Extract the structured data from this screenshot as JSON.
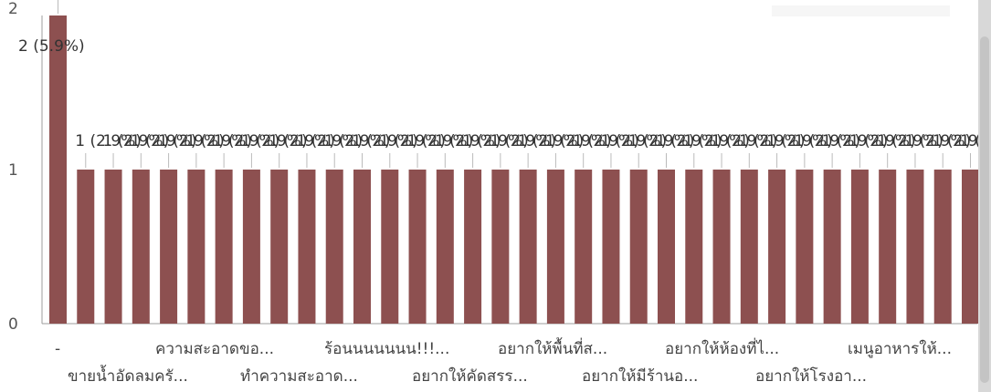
{
  "chart_data": {
    "type": "bar",
    "y_ticks": [
      "0",
      "1",
      "2"
    ],
    "ylim": [
      0,
      2
    ],
    "bar_color": "#8d5050",
    "values": [
      2,
      1,
      1,
      1,
      1,
      1,
      1,
      1,
      1,
      1,
      1,
      1,
      1,
      1,
      1,
      1,
      1,
      1,
      1,
      1,
      1,
      1,
      1,
      1,
      1,
      1,
      1,
      1,
      1,
      1,
      1,
      1,
      1,
      1
    ],
    "data_labels": [
      "2 (5.9%)",
      "1 (2.9%)",
      "1 (2.9%)",
      "1 (2.9%)",
      "1 (2.9%)",
      "1 (2.9%)",
      "1 (2.9%)",
      "1 (2.9%)",
      "1 (2.9%)",
      "1 (2.9%)",
      "1 (2.9%)",
      "1 (2.9%)",
      "1 (2.9%)",
      "1 (2.9%)",
      "1 (2.9%)",
      "1 (2.9%)",
      "1 (2.9%)",
      "1 (2.9%)",
      "1 (2.9%)",
      "1 (2.9%)",
      "1 (2.9%)",
      "1 (2.9%)",
      "1 (2.9%)",
      "1 (2.9%)",
      "1 (2.9%)",
      "1 (2.9%)",
      "1 (2.9%)",
      "1 (2.9%)",
      "1 (2.9%)",
      "1 (2.9%)",
      "1 (2.9%)",
      "1 (2.9%)",
      "1 (2.9%)",
      "1 (2.9%)"
    ],
    "category_labels": [
      "-",
      "ขายน้ำอัดลมครั...",
      "ความสะอาดขอ...",
      "ทำความสะอาด...",
      "ร้อนนนนนนน!!!...",
      "อยากให้คัดสรร...",
      "อยากให้พื้นที่ส...",
      "อยากให้มีร้านอ...",
      "อยากให้ห้องที่ไ...",
      "อยากให้โรงอา...",
      "เมนูอาหารให้..."
    ]
  }
}
